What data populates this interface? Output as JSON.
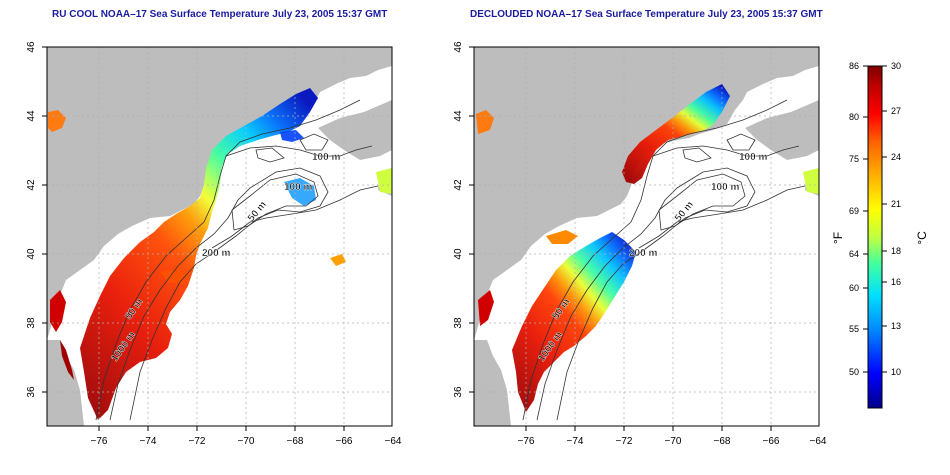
{
  "panels": [
    {
      "title": "RU COOL NOAA–17 Sea Surface Temperature July 23, 2005 15:37 GMT",
      "contour_labels": [
        "100 m",
        "100 m",
        "50 m",
        "200 m",
        "50 m",
        "1000 m"
      ]
    },
    {
      "title": "DECLOUDED NOAA–17 Sea Surface Temperature July 23, 2005 15:37 GMT",
      "contour_labels": [
        "100 m",
        "100 m",
        "50 m",
        "200 m",
        "50 m",
        "1000 m"
      ]
    }
  ],
  "axes": {
    "x_ticks": [
      "−76",
      "−74",
      "−72",
      "−70",
      "−68",
      "−66",
      "−64"
    ],
    "y_ticks": [
      "36",
      "38",
      "40",
      "42",
      "44",
      "46"
    ]
  },
  "colorbar": {
    "f_label": "°F",
    "c_label": "°C",
    "f_ticks": [
      "86",
      "80",
      "75",
      "69",
      "64",
      "60",
      "55",
      "50"
    ],
    "c_ticks": [
      "30",
      "27",
      "24",
      "21",
      "18",
      "16",
      "13",
      "10"
    ]
  },
  "colors": {
    "land": "#bdbdbd",
    "title": "#1a1aa0",
    "grid": "#b0b0b0",
    "contour": "#333333",
    "scale": [
      "#00008a",
      "#0000ff",
      "#0080ff",
      "#00e0ff",
      "#40ffa0",
      "#c0ff40",
      "#ffff00",
      "#ffb000",
      "#ff6000",
      "#ff0000",
      "#c00000",
      "#800000"
    ]
  }
}
